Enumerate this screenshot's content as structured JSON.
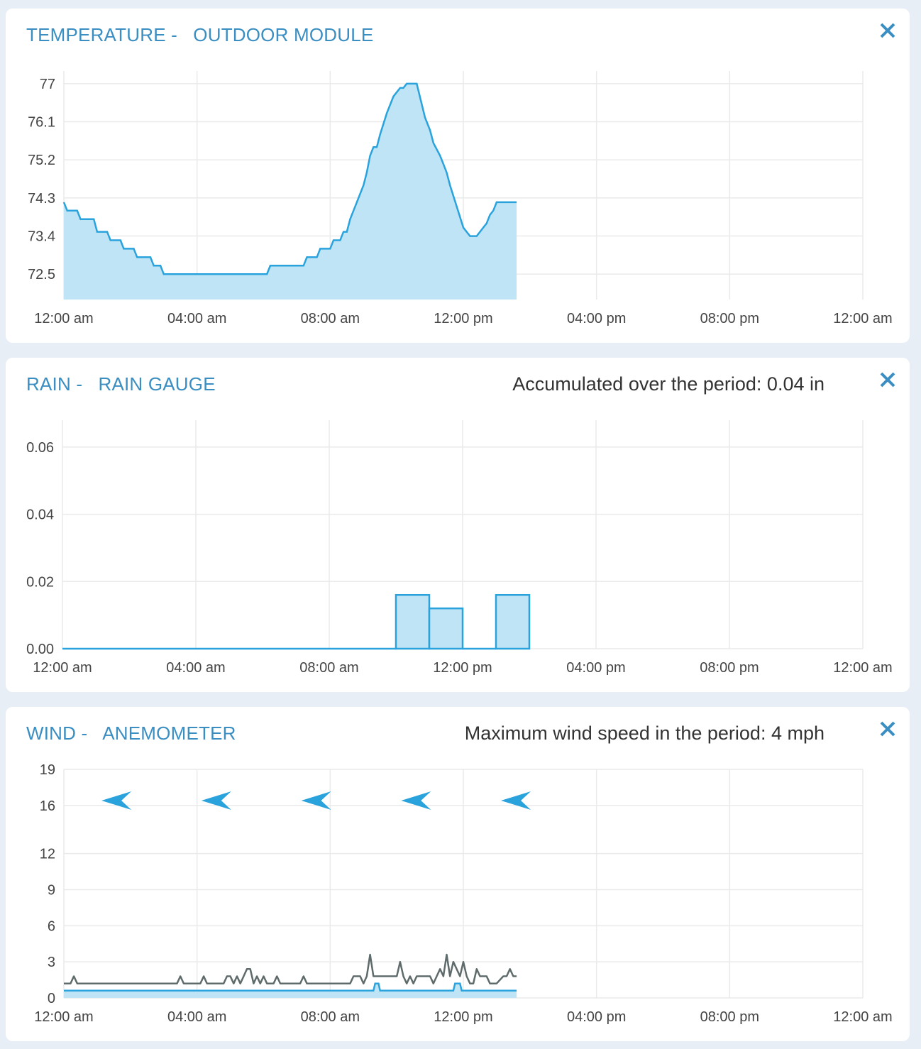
{
  "colors": {
    "accent": "#3a8ec2",
    "series_line": "#2aa3dd",
    "series_fill": "#bfe4f5",
    "gust_line": "#5f6b6b",
    "grid": "#eaeaea",
    "page_bg": "#e8eef5"
  },
  "close_icon": "close-icon",
  "x_tick_labels": [
    "12:00 am",
    "04:00 am",
    "08:00 am",
    "12:00 pm",
    "04:00 pm",
    "08:00 pm",
    "12:00 am"
  ],
  "panels": [
    {
      "title_kind": "TEMPERATURE -",
      "title_module": "OUTDOOR MODULE",
      "summary": ""
    },
    {
      "title_kind": "RAIN -",
      "title_module": "RAIN GAUGE",
      "summary": "Accumulated over the period: 0.04 in"
    },
    {
      "title_kind": "WIND -",
      "title_module": "ANEMOMETER",
      "summary": "Maximum wind speed in the period: 4 mph"
    }
  ],
  "chart_data": [
    {
      "type": "area",
      "x_unit": "hours",
      "xlim": [
        0,
        24
      ],
      "ylim": [
        71.9,
        77.3
      ],
      "y_tick_labels": [
        "77",
        "76.1",
        "75.2",
        "74.3",
        "73.4",
        "72.5"
      ],
      "y_tick_values": [
        77,
        76.1,
        75.2,
        74.3,
        73.4,
        72.5
      ],
      "grid": true,
      "series": [
        {
          "x": [
            0,
            0.1,
            0.4,
            0.5,
            0.9,
            1.0,
            1.3,
            1.4,
            1.7,
            1.8,
            2.1,
            2.2,
            2.6,
            2.7,
            2.9,
            3.0,
            3.3,
            3.4,
            3.6,
            3.7,
            4.5,
            5.5,
            6.1,
            6.2,
            6.7,
            7.2,
            7.3,
            7.6,
            7.7,
            8.0,
            8.1,
            8.3,
            8.4,
            8.5,
            8.6,
            8.7,
            8.8,
            8.9,
            9.0,
            9.1,
            9.2,
            9.3,
            9.4,
            9.5,
            9.7,
            9.9,
            10.1,
            10.2,
            10.3,
            10.4,
            10.5,
            10.6,
            10.85,
            11.0,
            11.1,
            11.3,
            11.4,
            11.5,
            11.6,
            11.8,
            12.0,
            12.2,
            12.3,
            12.4,
            12.6,
            12.7,
            12.8,
            12.9,
            13.0,
            13.1,
            13.6
          ],
          "y": [
            74.2,
            74.0,
            74.0,
            73.8,
            73.8,
            73.5,
            73.5,
            73.3,
            73.3,
            73.1,
            73.1,
            72.9,
            72.9,
            72.7,
            72.7,
            72.5,
            72.5,
            72.5,
            72.5,
            72.5,
            72.5,
            72.5,
            72.5,
            72.7,
            72.7,
            72.7,
            72.9,
            72.9,
            73.1,
            73.1,
            73.3,
            73.3,
            73.5,
            73.5,
            73.8,
            74.0,
            74.2,
            74.4,
            74.6,
            74.9,
            75.3,
            75.5,
            75.5,
            75.8,
            76.3,
            76.7,
            76.9,
            76.9,
            77.0,
            77.0,
            77.0,
            77.0,
            76.2,
            75.9,
            75.6,
            75.3,
            75.1,
            74.9,
            74.6,
            74.1,
            73.6,
            73.4,
            73.4,
            73.4,
            73.6,
            73.7,
            73.9,
            74.0,
            74.2,
            74.2,
            74.2
          ]
        }
      ]
    },
    {
      "type": "bar",
      "x_unit": "hours",
      "xlim": [
        0,
        24
      ],
      "ylim": [
        0,
        0.068
      ],
      "y_tick_labels": [
        "0.06",
        "0.04",
        "0.02",
        "0.00"
      ],
      "y_tick_values": [
        0.06,
        0.04,
        0.02,
        0.0
      ],
      "grid": true,
      "bars": [
        {
          "start": 10,
          "end": 11,
          "value": 0.016
        },
        {
          "start": 11,
          "end": 12,
          "value": 0.012
        },
        {
          "start": 12,
          "end": 13,
          "value": 0.0
        },
        {
          "start": 13,
          "end": 14,
          "value": 0.016
        }
      ],
      "baseline_until": 14
    },
    {
      "type": "line",
      "x_unit": "hours",
      "xlim": [
        0,
        24
      ],
      "ylim": [
        0,
        19
      ],
      "y_tick_labels": [
        "19",
        "16",
        "12",
        "9",
        "6",
        "3",
        "0"
      ],
      "y_tick_values": [
        19,
        16,
        12,
        9,
        6,
        3,
        0
      ],
      "grid": true,
      "series": [
        {
          "role": "wind_strength",
          "x": [
            0,
            9.3,
            9.35,
            9.45,
            9.5,
            11.7,
            11.75,
            11.9,
            11.95,
            13.6
          ],
          "y": [
            0.6,
            0.6,
            1.2,
            1.2,
            0.6,
            0.6,
            1.2,
            1.2,
            0.6,
            0.6
          ]
        },
        {
          "role": "gust_strength",
          "x": [
            0,
            0.2,
            0.3,
            0.4,
            3.4,
            3.5,
            3.6,
            4.1,
            4.2,
            4.3,
            4.8,
            4.9,
            5.0,
            5.1,
            5.2,
            5.3,
            5.4,
            5.5,
            5.6,
            5.7,
            5.8,
            5.9,
            6.0,
            6.1,
            6.3,
            6.4,
            6.5,
            7.1,
            7.2,
            7.3,
            8.6,
            8.7,
            8.9,
            9.0,
            9.1,
            9.2,
            9.3,
            9.4,
            9.5,
            10.0,
            10.1,
            10.2,
            10.3,
            10.4,
            10.5,
            10.6,
            10.7,
            10.8,
            11.0,
            11.1,
            11.2,
            11.3,
            11.4,
            11.5,
            11.6,
            11.7,
            11.8,
            11.9,
            12.0,
            12.1,
            12.2,
            12.3,
            12.4,
            12.5,
            12.6,
            12.7,
            12.8,
            13.0,
            13.2,
            13.3,
            13.4,
            13.5,
            13.6
          ],
          "y": [
            1.2,
            1.2,
            1.8,
            1.2,
            1.2,
            1.8,
            1.2,
            1.2,
            1.8,
            1.2,
            1.2,
            1.8,
            1.8,
            1.2,
            1.8,
            1.2,
            1.8,
            2.4,
            2.4,
            1.2,
            1.8,
            1.2,
            1.8,
            1.2,
            1.2,
            1.8,
            1.2,
            1.2,
            1.8,
            1.2,
            1.2,
            1.8,
            1.8,
            1.2,
            1.8,
            3.6,
            1.8,
            1.8,
            1.8,
            1.8,
            3.0,
            1.8,
            1.2,
            1.8,
            1.2,
            1.8,
            1.8,
            1.8,
            1.8,
            1.2,
            1.8,
            2.4,
            1.8,
            3.6,
            1.8,
            3.0,
            2.4,
            1.8,
            3.0,
            1.8,
            1.2,
            1.2,
            2.4,
            1.8,
            1.8,
            1.8,
            1.2,
            1.2,
            1.8,
            1.8,
            2.4,
            1.8,
            1.8
          ]
        }
      ],
      "direction_arrows": [
        {
          "x": 1.6,
          "points": "west"
        },
        {
          "x": 4.6,
          "points": "west"
        },
        {
          "x": 7.6,
          "points": "west"
        },
        {
          "x": 10.6,
          "points": "west"
        },
        {
          "x": 13.6,
          "points": "west"
        }
      ]
    }
  ]
}
